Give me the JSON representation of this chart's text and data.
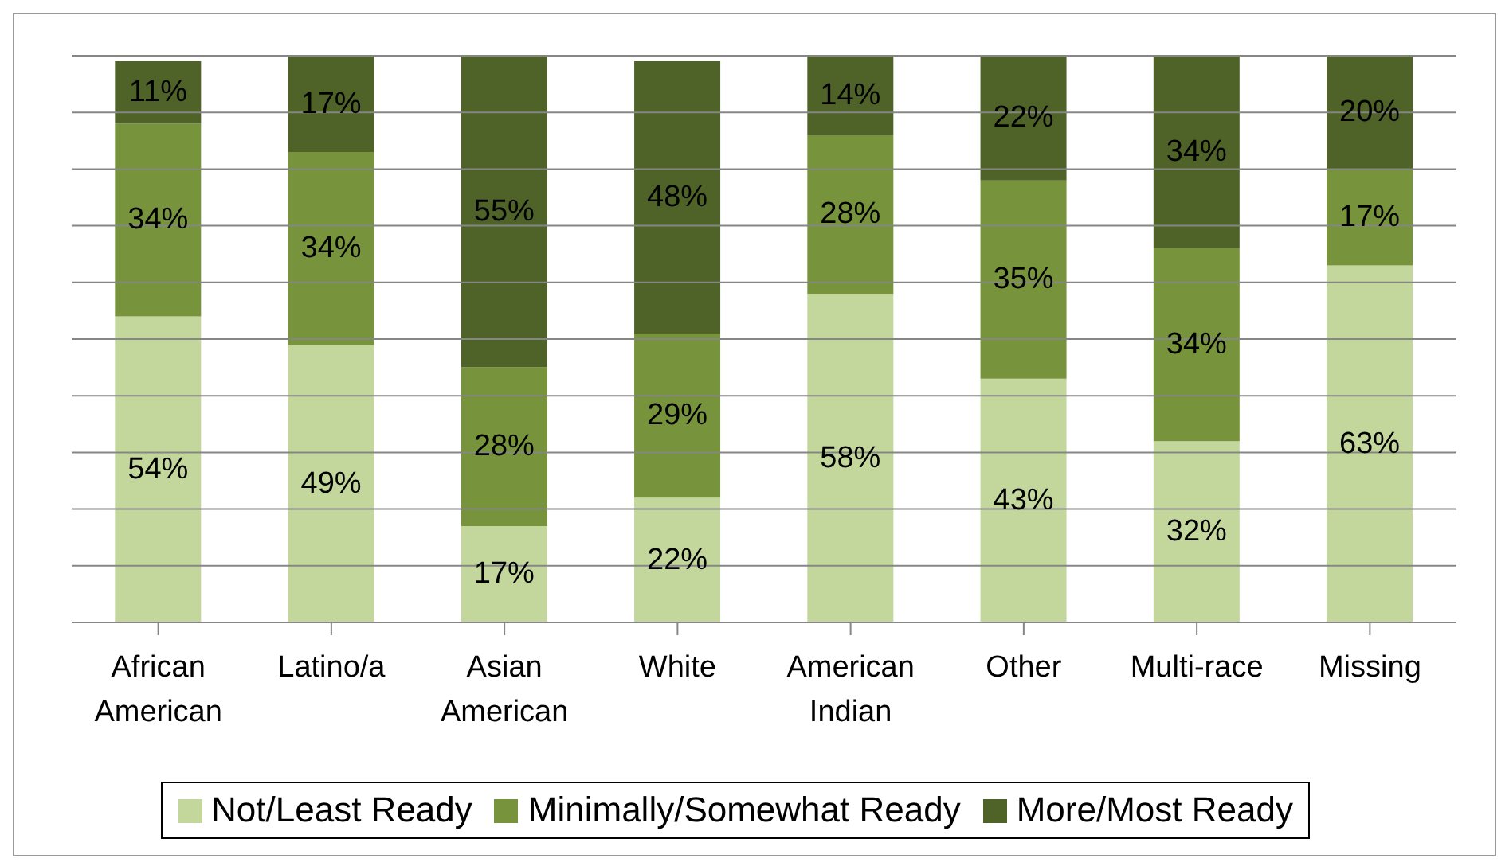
{
  "chart_data": {
    "type": "bar",
    "stacked": true,
    "categories": [
      "African American",
      "Latino/a",
      "Asian American",
      "White",
      "American Indian",
      "Other",
      "Multi-race",
      "Missing"
    ],
    "series": [
      {
        "name": "Not/Least Ready",
        "color": "#c3d69b",
        "values": [
          54,
          49,
          17,
          22,
          58,
          43,
          32,
          63
        ],
        "value_labels": [
          "54%",
          "49%",
          "17%",
          "22%",
          "58%",
          "43%",
          "32%",
          "63%"
        ]
      },
      {
        "name": "Minimally/Somewhat Ready",
        "color": "#77933c",
        "values": [
          34,
          34,
          28,
          29,
          28,
          35,
          34,
          17
        ],
        "value_labels": [
          "34%",
          "34%",
          "28%",
          "29%",
          "28%",
          "35%",
          "34%",
          "17%"
        ]
      },
      {
        "name": "More/Most Ready",
        "color": "#4f6228",
        "values": [
          11,
          17,
          55,
          48,
          14,
          22,
          34,
          20
        ],
        "value_labels": [
          "11%",
          "17%",
          "55%",
          "48%",
          "14%",
          "22%",
          "34%",
          "20%"
        ]
      }
    ],
    "ylim": [
      0,
      100
    ],
    "yticks": [
      {
        "value": 0,
        "label": null
      },
      {
        "value": 10,
        "label": null
      },
      {
        "value": 20,
        "label": null
      },
      {
        "value": 30,
        "label": null
      },
      {
        "value": 40,
        "label": null
      },
      {
        "value": 50,
        "label": null
      },
      {
        "value": 60,
        "label": null
      },
      {
        "value": 70,
        "label": null
      },
      {
        "value": 80,
        "label": null
      },
      {
        "value": 90,
        "label": null
      },
      {
        "value": 100,
        "label": null
      }
    ],
    "tick_labels": "x",
    "grid": "y",
    "legend": "bottom"
  }
}
